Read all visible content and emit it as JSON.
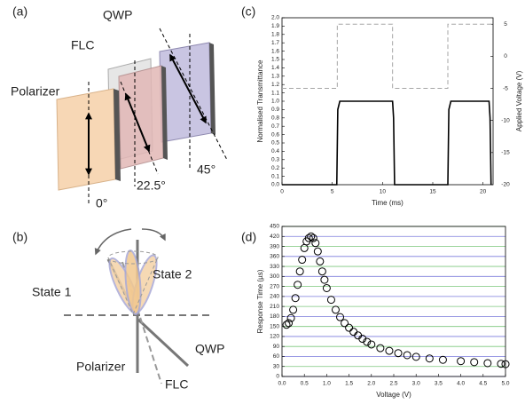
{
  "panel_labels": {
    "a": "(a)",
    "b": "(b)",
    "c": "(c)",
    "d": "(d)"
  },
  "diagram_a": {
    "qwp": "QWP",
    "flc": "FLC",
    "polarizer": "Polarizer",
    "angle_polarizer": "0°",
    "angle_flc": "22.5°",
    "angle_qwp": "45°"
  },
  "diagram_b": {
    "state1": "State 1",
    "state2": "State 2",
    "qwp": "QWP",
    "polarizer": "Polarizer",
    "flc": "FLC"
  },
  "chart_data": [
    {
      "type": "line",
      "x_label": "Time (ms)",
      "y_label": "Normalised Transmittance",
      "y2_label": "Applied Voltage (V)",
      "xlim": [
        0,
        21
      ],
      "xticks": [
        0,
        5,
        10,
        15,
        20
      ],
      "ylim": [
        0,
        2
      ],
      "yticks": [
        {
          "value": 0,
          "label": "0.0"
        },
        0.1,
        0.2,
        0.3,
        0.4,
        0.5,
        0.6,
        0.7,
        0.8,
        0.9,
        {
          "value": 1,
          "label": "1.0"
        },
        1.1,
        1.2,
        1.3,
        1.4,
        1.5,
        1.6,
        1.7,
        1.8,
        1.9,
        {
          "value": 2,
          "label": "2.0"
        }
      ],
      "y2lim": [
        -20,
        6
      ],
      "y2ticks": [
        5,
        0,
        -5,
        -10,
        -15,
        -20
      ],
      "series": [
        {
          "color": "#000000",
          "x": [
            0,
            5.45,
            5.55,
            5.75,
            11.0,
            11.1,
            11.2,
            16.5,
            16.6,
            16.8,
            20.6,
            20.7,
            20.8
          ],
          "values": [
            0,
            0,
            0.9,
            1.0,
            1.0,
            0.8,
            0,
            0,
            0.9,
            1.0,
            1.0,
            0.8,
            0
          ]
        },
        {
          "color": "#a6a6a6",
          "axis": "y2",
          "dashed": true,
          "x": [
            0,
            5.5,
            5.5,
            11.0,
            11.0,
            16.5,
            16.5,
            21
          ],
          "values": [
            -5,
            -5,
            5,
            5,
            -5,
            -5,
            5,
            5
          ]
        }
      ]
    },
    {
      "type": "scatter",
      "x_label": "Voltage (V)",
      "y_label": "Response Time (µs)",
      "color": "#000000",
      "xlim": [
        0,
        5
      ],
      "xticks": [
        {
          "value": 0,
          "label": "0.0"
        },
        0.5,
        {
          "value": 1,
          "label": "1.0"
        },
        1.5,
        {
          "value": 2,
          "label": "2.0"
        },
        2.5,
        {
          "value": 3,
          "label": "3.0"
        },
        3.5,
        {
          "value": 4,
          "label": "4.0"
        },
        4.5,
        {
          "value": 5,
          "label": "5.0"
        }
      ],
      "ylim": [
        0,
        450
      ],
      "yticks": [
        0,
        30,
        60,
        90,
        120,
        150,
        180,
        210,
        240,
        270,
        300,
        330,
        360,
        390,
        420,
        450
      ],
      "grid": true,
      "grid_colors": [
        "#7b7bdc",
        "#7cc77c"
      ],
      "x": [
        0.1,
        0.15,
        0.2,
        0.25,
        0.3,
        0.35,
        0.4,
        0.45,
        0.5,
        0.55,
        0.6,
        0.65,
        0.7,
        0.75,
        0.8,
        0.85,
        0.9,
        0.95,
        1.0,
        1.1,
        1.2,
        1.3,
        1.4,
        1.5,
        1.6,
        1.7,
        1.8,
        1.9,
        2.0,
        2.2,
        2.4,
        2.6,
        2.8,
        3.0,
        3.3,
        3.6,
        4.0,
        4.3,
        4.6,
        4.9,
        5.0
      ],
      "values": [
        155,
        160,
        175,
        200,
        235,
        275,
        315,
        350,
        385,
        405,
        415,
        420,
        415,
        400,
        375,
        345,
        315,
        290,
        265,
        230,
        200,
        178,
        160,
        146,
        134,
        123,
        113,
        104,
        96,
        85,
        77,
        70,
        64,
        59,
        54,
        50,
        46,
        43,
        40,
        38,
        37
      ]
    }
  ]
}
